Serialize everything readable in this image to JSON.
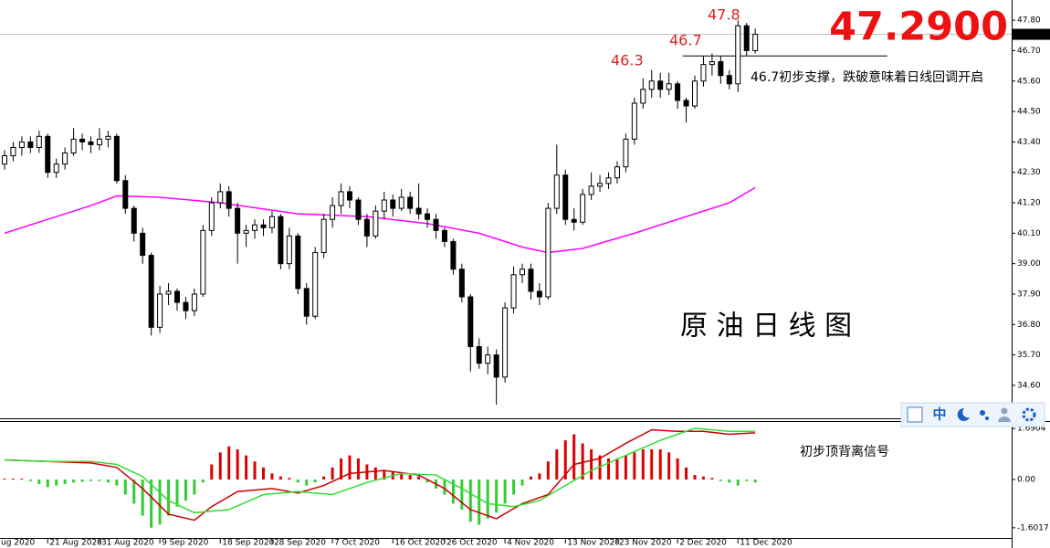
{
  "chart_data": [
    {
      "type": "candlestick",
      "ohlc": [
        [
          42.6,
          43.1,
          42.4,
          42.9
        ],
        [
          42.9,
          43.4,
          42.7,
          43.2
        ],
        [
          43.2,
          43.6,
          42.9,
          43.4
        ],
        [
          43.4,
          43.6,
          43.0,
          43.2
        ],
        [
          43.2,
          43.8,
          43.0,
          43.6
        ],
        [
          43.6,
          43.7,
          42.1,
          42.3
        ],
        [
          42.3,
          42.8,
          42.1,
          42.6
        ],
        [
          42.6,
          43.2,
          42.4,
          43.0
        ],
        [
          43.0,
          43.9,
          42.9,
          43.5
        ],
        [
          43.5,
          43.7,
          43.1,
          43.4
        ],
        [
          43.4,
          43.6,
          43.0,
          43.3
        ],
        [
          43.3,
          43.9,
          43.1,
          43.5
        ],
        [
          43.5,
          43.8,
          43.2,
          43.6
        ],
        [
          43.6,
          43.7,
          41.9,
          42.0
        ],
        [
          42.0,
          42.2,
          40.8,
          41.0
        ],
        [
          41.0,
          41.1,
          39.8,
          40.1
        ],
        [
          40.1,
          40.3,
          39.0,
          39.3
        ],
        [
          39.3,
          39.4,
          36.4,
          36.7
        ],
        [
          36.7,
          38.2,
          36.5,
          37.9
        ],
        [
          37.9,
          38.3,
          37.5,
          38.0
        ],
        [
          38.0,
          38.1,
          37.3,
          37.6
        ],
        [
          37.6,
          37.8,
          37.0,
          37.3
        ],
        [
          37.3,
          38.1,
          37.1,
          37.9
        ],
        [
          37.9,
          40.4,
          37.8,
          40.2
        ],
        [
          40.2,
          41.4,
          40.0,
          41.2
        ],
        [
          41.2,
          41.9,
          41.0,
          41.6
        ],
        [
          41.6,
          41.8,
          40.7,
          41.0
        ],
        [
          41.0,
          41.2,
          39.0,
          40.1
        ],
        [
          40.1,
          40.4,
          39.6,
          40.2
        ],
        [
          40.2,
          40.6,
          39.9,
          40.4
        ],
        [
          40.4,
          40.6,
          40.0,
          40.3
        ],
        [
          40.3,
          40.9,
          40.1,
          40.7
        ],
        [
          40.7,
          40.8,
          38.8,
          39.0
        ],
        [
          39.0,
          40.3,
          38.8,
          40.0
        ],
        [
          40.0,
          40.1,
          37.9,
          38.1
        ],
        [
          38.1,
          38.3,
          36.8,
          37.1
        ],
        [
          37.1,
          39.6,
          37.0,
          39.4
        ],
        [
          39.4,
          40.8,
          39.2,
          40.6
        ],
        [
          40.6,
          41.4,
          40.3,
          41.1
        ],
        [
          41.1,
          41.9,
          40.8,
          41.6
        ],
        [
          41.6,
          41.8,
          41.0,
          41.3
        ],
        [
          41.3,
          41.4,
          40.4,
          40.6
        ],
        [
          40.6,
          40.8,
          39.6,
          40.0
        ],
        [
          40.0,
          41.1,
          39.9,
          40.9
        ],
        [
          40.9,
          41.6,
          40.6,
          41.3
        ],
        [
          41.3,
          41.5,
          40.7,
          41.0
        ],
        [
          41.0,
          41.7,
          40.9,
          41.4
        ],
        [
          41.4,
          41.6,
          40.8,
          41.0
        ],
        [
          41.0,
          41.9,
          40.6,
          40.8
        ],
        [
          40.8,
          41.0,
          40.3,
          40.6
        ],
        [
          40.6,
          40.8,
          39.9,
          40.2
        ],
        [
          40.2,
          40.3,
          39.6,
          39.8
        ],
        [
          39.8,
          39.9,
          38.6,
          38.8
        ],
        [
          38.8,
          39.0,
          37.6,
          37.8
        ],
        [
          37.8,
          37.9,
          35.1,
          36.0
        ],
        [
          36.0,
          36.3,
          35.2,
          35.4
        ],
        [
          35.4,
          36.0,
          35.0,
          35.7
        ],
        [
          35.7,
          35.9,
          33.9,
          34.9
        ],
        [
          34.9,
          37.6,
          34.7,
          37.4
        ],
        [
          37.4,
          38.9,
          37.2,
          38.6
        ],
        [
          38.6,
          39.0,
          38.3,
          38.8
        ],
        [
          38.8,
          39.0,
          37.7,
          38.0
        ],
        [
          38.0,
          38.3,
          37.5,
          37.8
        ],
        [
          37.8,
          41.2,
          37.7,
          41.0
        ],
        [
          41.0,
          43.3,
          40.8,
          42.2
        ],
        [
          42.2,
          42.4,
          40.4,
          40.6
        ],
        [
          40.6,
          41.0,
          40.2,
          40.5
        ],
        [
          40.5,
          41.7,
          40.4,
          41.5
        ],
        [
          41.5,
          42.3,
          41.3,
          41.8
        ],
        [
          41.8,
          42.2,
          41.6,
          41.9
        ],
        [
          41.9,
          42.3,
          41.7,
          42.1
        ],
        [
          42.1,
          42.7,
          41.9,
          42.5
        ],
        [
          42.5,
          43.7,
          42.3,
          43.5
        ],
        [
          43.5,
          45.0,
          43.3,
          44.8
        ],
        [
          44.8,
          45.7,
          44.6,
          45.3
        ],
        [
          45.3,
          46.0,
          45.0,
          45.6
        ],
        [
          45.6,
          45.9,
          45.0,
          45.3
        ],
        [
          45.3,
          45.9,
          45.1,
          45.5
        ],
        [
          45.5,
          45.6,
          44.6,
          44.9
        ],
        [
          44.9,
          45.0,
          44.1,
          44.7
        ],
        [
          44.7,
          45.8,
          44.6,
          45.6
        ],
        [
          45.6,
          46.5,
          45.4,
          46.2
        ],
        [
          46.2,
          46.6,
          45.8,
          46.3
        ],
        [
          46.3,
          46.5,
          45.5,
          45.8
        ],
        [
          45.8,
          46.0,
          45.3,
          45.5
        ],
        [
          45.5,
          47.8,
          45.2,
          47.6
        ],
        [
          47.6,
          47.7,
          46.5,
          46.7
        ],
        [
          46.7,
          47.5,
          46.6,
          47.29
        ]
      ],
      "up_color": "#ffffff",
      "down_color": "#000000",
      "xlim": [
        -0.53,
        116.72
      ],
      "ylim": [
        33.41,
        48.53
      ],
      "yticks": [
        {
          "value": 34.6,
          "label": "34.60"
        },
        {
          "value": 35.7,
          "label": "35.70"
        },
        {
          "value": 36.8,
          "label": "36.80"
        },
        {
          "value": 37.9,
          "label": "37.90"
        },
        {
          "value": 39,
          "label": "39.00"
        },
        {
          "value": 40.1,
          "label": "40.10"
        },
        {
          "value": 41.2,
          "label": "41.20"
        },
        {
          "value": 42.3,
          "label": "42.30"
        },
        {
          "value": 43.4,
          "label": "43.40"
        },
        {
          "value": 44.5,
          "label": "44.50"
        },
        {
          "value": 45.6,
          "label": "45.60"
        },
        {
          "value": 46.7,
          "label": "46.70"
        },
        {
          "value": 47.8,
          "label": "47.80"
        }
      ],
      "moving_average": {
        "color": "#ff00ff",
        "x": [
          0,
          5,
          10,
          13,
          18,
          25,
          34,
          42,
          49,
          55,
          60,
          63,
          67,
          73,
          80,
          84,
          87
        ],
        "values": [
          40.1,
          40.6,
          41.1,
          41.45,
          41.4,
          41.2,
          40.8,
          40.7,
          40.45,
          40.1,
          39.6,
          39.4,
          39.55,
          40.1,
          40.8,
          41.2,
          41.75
        ]
      },
      "last_price": 47.29,
      "support_line": {
        "value": 46.51,
        "from": 78.6,
        "to": 102.3
      },
      "annotations": [
        "47.8",
        "46.7",
        "46.3",
        "47.2900",
        "46.7初步支撑，跌破意味着日线回调开启",
        "原 油 日 线 图"
      ]
    },
    {
      "type": "macd",
      "histogram": [
        0.03,
        0.03,
        0.03,
        -0.05,
        -0.15,
        -0.25,
        -0.2,
        -0.15,
        -0.1,
        -0.08,
        -0.05,
        -0.05,
        -0.1,
        -0.2,
        -0.5,
        -0.8,
        -1.2,
        -1.6,
        -1.5,
        -1.2,
        -0.9,
        -0.7,
        -0.5,
        -0.1,
        0.5,
        0.9,
        1.1,
        1.0,
        0.8,
        0.6,
        0.4,
        0.2,
        0.1,
        0.05,
        -0.1,
        -0.2,
        -0.1,
        0.1,
        0.4,
        0.7,
        0.8,
        0.7,
        0.5,
        0.4,
        0.3,
        0.25,
        0.2,
        0.15,
        0.1,
        -0.1,
        -0.3,
        -0.5,
        -0.8,
        -1.0,
        -1.4,
        -1.5,
        -1.3,
        -1.1,
        -0.8,
        -0.5,
        -0.2,
        0.1,
        0.2,
        0.6,
        1.0,
        1.3,
        1.5,
        1.2,
        1.0,
        0.8,
        0.7,
        0.7,
        0.8,
        0.9,
        1.0,
        1.0,
        1.0,
        0.9,
        0.7,
        0.4,
        0.15,
        0.1,
        0.05,
        -0.05,
        -0.1,
        -0.2,
        -0.05,
        -0.1
      ],
      "up_color": "#dd0000",
      "down_color": "#33cc33",
      "series": [
        {
          "color": "#cc0000",
          "x": [
            0,
            5,
            10,
            13,
            16,
            19,
            22,
            24,
            27,
            31,
            34,
            37,
            40,
            44,
            48,
            51,
            54,
            57,
            60,
            63,
            66,
            69,
            72,
            75,
            78,
            81,
            84,
            87
          ],
          "values": [
            0.65,
            0.6,
            0.55,
            0.4,
            -0.3,
            -1.15,
            -1.35,
            -0.9,
            -0.4,
            -0.3,
            -0.45,
            -0.2,
            0.2,
            0.3,
            0.15,
            -0.3,
            -1.0,
            -1.3,
            -0.8,
            -0.5,
            0.5,
            0.7,
            1.2,
            1.65,
            1.6,
            1.6,
            1.5,
            1.55
          ]
        },
        {
          "color": "#33dd33",
          "x": [
            0,
            5,
            10,
            13,
            16,
            19,
            22,
            26,
            30,
            34,
            38,
            42,
            46,
            50,
            53,
            56,
            59,
            62,
            65,
            68,
            72,
            76,
            80,
            84,
            87
          ],
          "values": [
            0.65,
            0.6,
            0.6,
            0.5,
            0.1,
            -0.7,
            -1.1,
            -1.0,
            -0.5,
            -0.4,
            -0.5,
            -0.1,
            0.2,
            0.15,
            -0.3,
            -0.8,
            -0.9,
            -0.7,
            -0.2,
            0.3,
            0.8,
            1.3,
            1.7,
            1.6,
            1.6
          ]
        }
      ],
      "xlim": [
        -0.53,
        116.72
      ],
      "ylim": [
        -1.97,
        1.91
      ],
      "yticks": [
        1.6904,
        {
          "value": 0,
          "label": "0.00"
        },
        -1.6017
      ],
      "xticks": [
        {
          "value": -2,
          "label": "ug 2020"
        },
        {
          "value": 5,
          "label": "21 Aug 2020"
        },
        {
          "value": 11,
          "label": "31 Aug 2020"
        },
        {
          "value": 18,
          "label": "9 Sep 2020"
        },
        {
          "value": 25,
          "label": "18 Sep 2020"
        },
        {
          "value": 31,
          "label": "28 Sep 2020"
        },
        {
          "value": 38,
          "label": "7 Oct 2020"
        },
        {
          "value": 45,
          "label": "16 Oct 2020"
        },
        {
          "value": 51,
          "label": "26 Oct 2020"
        },
        {
          "value": 58,
          "label": "4 Nov 2020"
        },
        {
          "value": 65,
          "label": "13 Nov 2020"
        },
        {
          "value": 71,
          "label": "23 Nov 2020"
        },
        {
          "value": 78,
          "label": "2 Dec 2020"
        },
        {
          "value": 85,
          "label": "11 Dec 2020"
        }
      ],
      "annotations": [
        "初步顶背离信号"
      ]
    }
  ],
  "toolbar": {
    "label": "中"
  }
}
